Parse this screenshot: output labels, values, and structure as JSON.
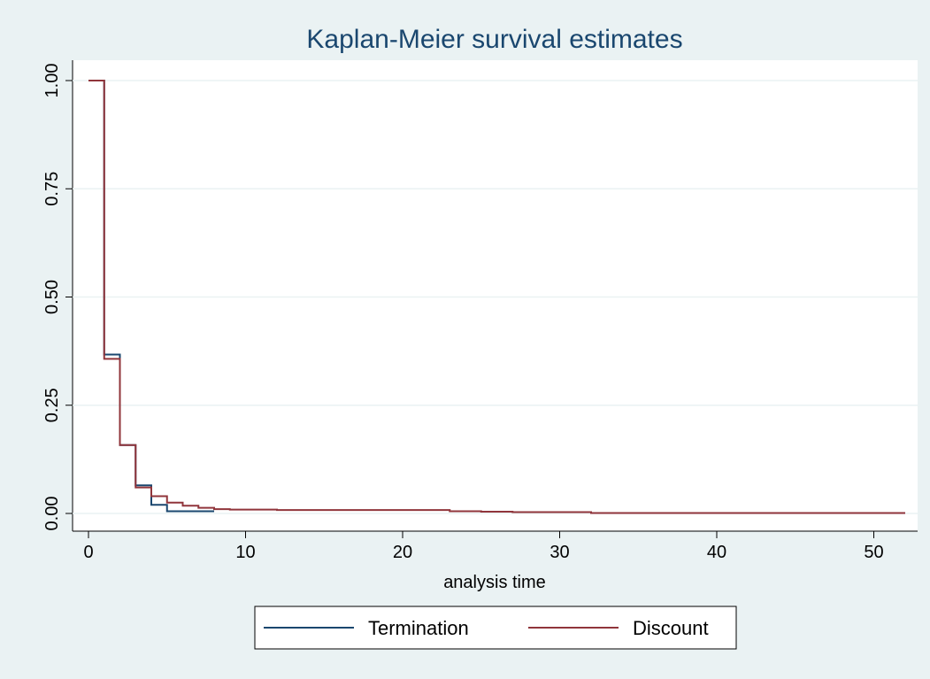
{
  "chart_data": {
    "type": "step",
    "title": "Kaplan-Meier survival estimates",
    "x_label": "analysis time",
    "xlim": [
      0,
      52
    ],
    "xticks": [
      0,
      10,
      20,
      30,
      40,
      50
    ],
    "ylim": [
      0,
      1
    ],
    "yticks": [
      {
        "value": 0,
        "label": "0.00"
      },
      {
        "value": 0.25,
        "label": "0.25"
      },
      {
        "value": 0.5,
        "label": "0.50"
      },
      {
        "value": 0.75,
        "label": "0.75"
      },
      {
        "value": 1,
        "label": "1.00"
      }
    ],
    "grid": true,
    "legend": "bottom",
    "series": [
      {
        "name": "Termination",
        "color": "#1a476f",
        "x": [
          0,
          1,
          2,
          3,
          4,
          5,
          8
        ],
        "values": [
          1,
          0.367,
          0.158,
          0.065,
          0.02,
          0.005,
          0.005
        ]
      },
      {
        "name": "Discount",
        "color": "#90353b",
        "x": [
          0,
          1,
          2,
          3,
          4,
          5,
          6,
          7,
          8,
          9,
          12,
          23,
          25,
          27,
          32,
          52
        ],
        "values": [
          1,
          0.357,
          0.158,
          0.06,
          0.04,
          0.025,
          0.018,
          0.013,
          0.01,
          0.009,
          0.008,
          0.005,
          0.004,
          0.003,
          0.001,
          0.001
        ]
      }
    ]
  }
}
